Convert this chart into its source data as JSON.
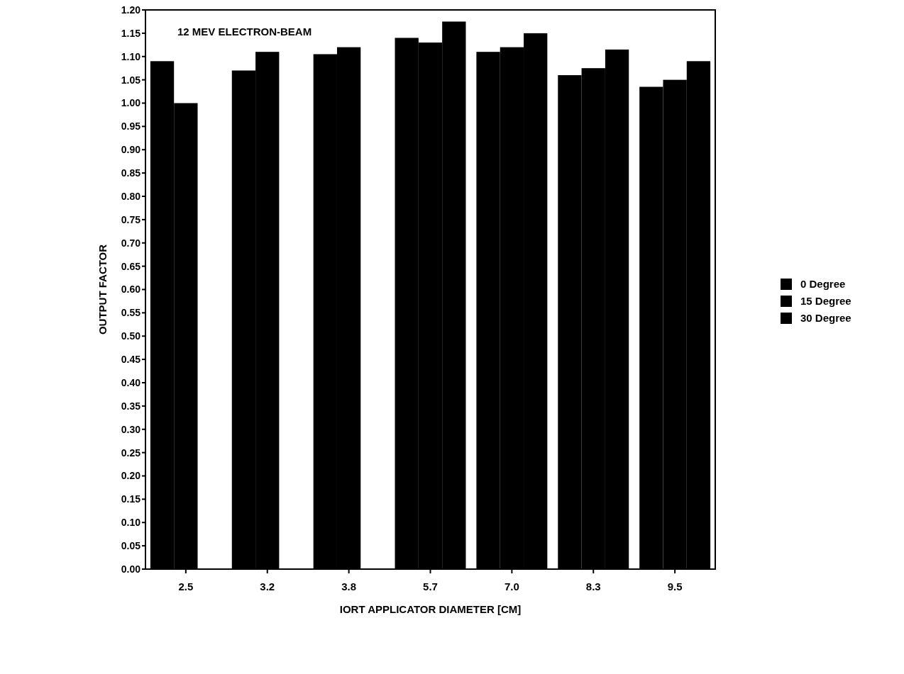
{
  "chart_data": {
    "type": "bar",
    "xlabel": "IORT APPLICATOR DIAMETER [CM]",
    "ylabel": "OUTPUT FACTOR",
    "annotations": [
      "12 MEV ELECTRON-BEAM"
    ],
    "categories": [
      "2.5",
      "3.2",
      "3.8",
      "5.7",
      "7.0",
      "8.3",
      "9.5"
    ],
    "series": [
      {
        "name": "0 Degree",
        "color": "#000000",
        "values": [
          1.09,
          1.07,
          1.105,
          1.14,
          1.11,
          1.06,
          1.035
        ]
      },
      {
        "name": "15 Degree",
        "color": "#000000",
        "values": [
          1.0,
          1.11,
          1.12,
          1.13,
          1.12,
          1.075,
          1.05
        ]
      },
      {
        "name": "30 Degree",
        "color": "#000000",
        "values": [
          null,
          null,
          null,
          1.175,
          1.15,
          1.115,
          1.09
        ]
      }
    ],
    "ylim": [
      0,
      1.2
    ],
    "yticks": [
      {
        "value": 0,
        "label": "0.00"
      },
      {
        "value": 0.05,
        "label": "0.05"
      },
      {
        "value": 0.1,
        "label": "0.10"
      },
      {
        "value": 0.15,
        "label": "0.15"
      },
      {
        "value": 0.2,
        "label": "0.20"
      },
      {
        "value": 0.25,
        "label": "0.25"
      },
      {
        "value": 0.3,
        "label": "0.30"
      },
      {
        "value": 0.35,
        "label": "0.35"
      },
      {
        "value": 0.4,
        "label": "0.40"
      },
      {
        "value": 0.45,
        "label": "0.45"
      },
      {
        "value": 0.5,
        "label": "0.50"
      },
      {
        "value": 0.55,
        "label": "0.55"
      },
      {
        "value": 0.6,
        "label": "0.60"
      },
      {
        "value": 0.65,
        "label": "0.65"
      },
      {
        "value": 0.7,
        "label": "0.70"
      },
      {
        "value": 0.75,
        "label": "0.75"
      },
      {
        "value": 0.8,
        "label": "0.80"
      },
      {
        "value": 0.85,
        "label": "0.85"
      },
      {
        "value": 0.9,
        "label": "0.90"
      },
      {
        "value": 0.95,
        "label": "0.95"
      },
      {
        "value": 1,
        "label": "1.00"
      },
      {
        "value": 1.05,
        "label": "1.05"
      },
      {
        "value": 1.1,
        "label": "1.10"
      },
      {
        "value": 1.15,
        "label": "1.15"
      },
      {
        "value": 1.2,
        "label": "1.20"
      }
    ],
    "legend": "right",
    "grid": false
  }
}
